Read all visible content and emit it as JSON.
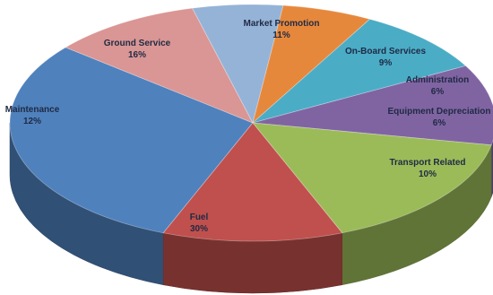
{
  "chart_data": {
    "type": "pie",
    "style": "3d",
    "title": "",
    "slices": [
      {
        "label": "Fuel",
        "value": 30,
        "value_text": "30%",
        "color": "#4f81bd"
      },
      {
        "label": "Transport Related",
        "value": 10,
        "value_text": "10%",
        "color": "#d99694"
      },
      {
        "label": "Equipment Depreciation",
        "value": 6,
        "value_text": "6%",
        "color": "#95b3d7"
      },
      {
        "label": "Administration",
        "value": 6,
        "value_text": "6%",
        "color": "#e6883c"
      },
      {
        "label": "On-Board Services",
        "value": 9,
        "value_text": "9%",
        "color": "#4bacc6"
      },
      {
        "label": "Market Promotion",
        "value": 11,
        "value_text": "11%",
        "color": "#8064a2"
      },
      {
        "label": "Ground Service",
        "value": 16,
        "value_text": "16%",
        "color": "#9bbb59"
      },
      {
        "label": "Maintenance",
        "value": 12,
        "value_text": "12%",
        "color": "#c0504d"
      }
    ]
  }
}
